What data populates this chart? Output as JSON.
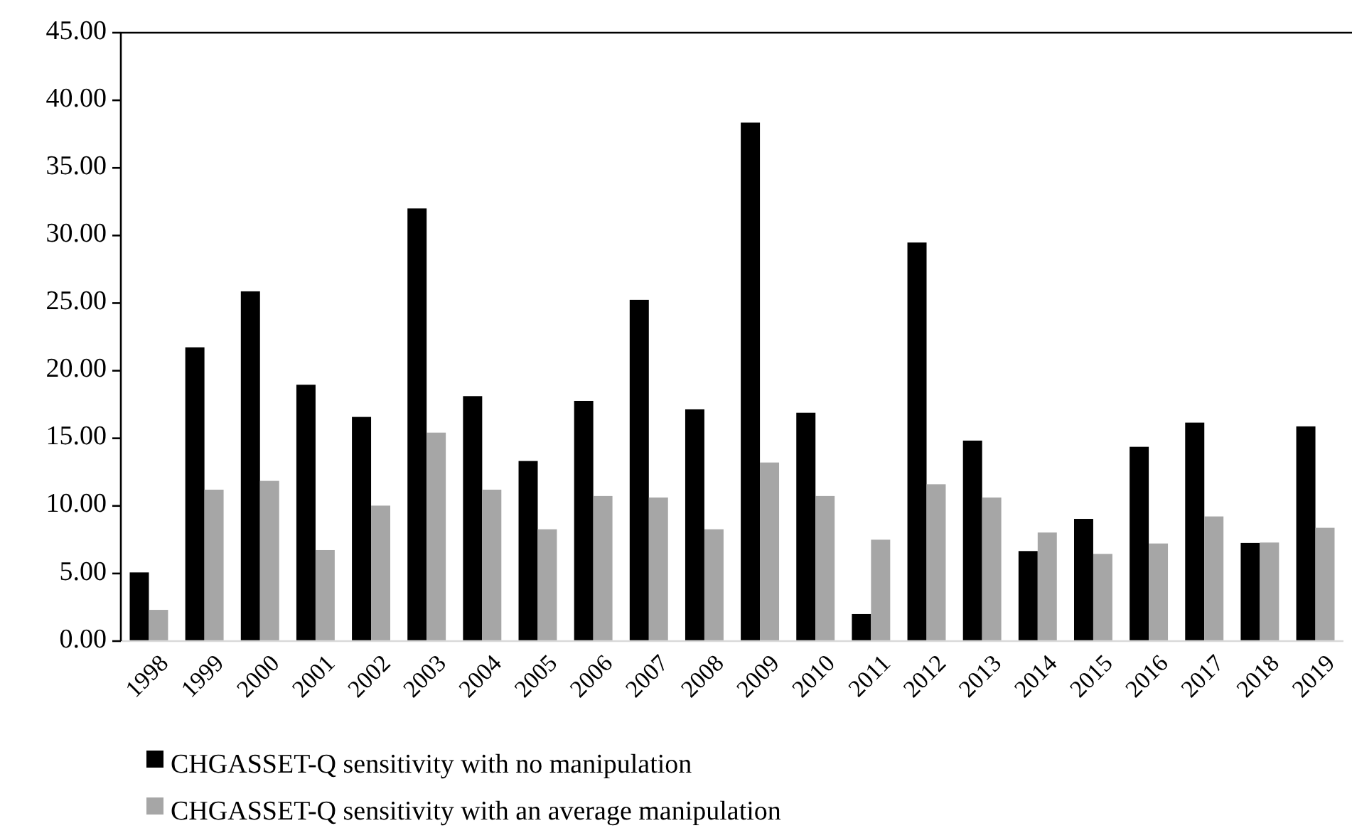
{
  "chart_data": {
    "type": "bar",
    "categories": [
      "1998",
      "1999",
      "2000",
      "2001",
      "2002",
      "2003",
      "2004",
      "2005",
      "2006",
      "2007",
      "2008",
      "2009",
      "2010",
      "2011",
      "2012",
      "2013",
      "2014",
      "2015",
      "2016",
      "2017",
      "2018",
      "2019"
    ],
    "series": [
      {
        "name": "CHGASSET-Q sensitivity with no manipulation",
        "color": "#000000",
        "values": [
          5.08,
          21.73,
          25.87,
          18.96,
          16.58,
          32.0,
          18.12,
          13.32,
          17.77,
          25.24,
          17.14,
          38.35,
          16.89,
          2.0,
          29.48,
          14.83,
          6.66,
          9.04,
          14.37,
          16.16,
          7.26,
          15.88
        ]
      },
      {
        "name": "CHGASSET-Q sensitivity with an average manipulation",
        "color": "#a6a6a6",
        "values": [
          2.31,
          11.2,
          11.85,
          6.73,
          10.02,
          15.42,
          11.2,
          8.27,
          10.73,
          10.62,
          8.27,
          13.21,
          10.73,
          7.5,
          11.6,
          10.62,
          8.03,
          6.45,
          7.22,
          9.22,
          7.29,
          8.38
        ]
      }
    ],
    "ylim": [
      0,
      45
    ],
    "yticks": [
      {
        "value": 0,
        "label": "0.00"
      },
      {
        "value": 5,
        "label": "5.00"
      },
      {
        "value": 10,
        "label": "10.00"
      },
      {
        "value": 15,
        "label": "15.00"
      },
      {
        "value": 20,
        "label": "20.00"
      },
      {
        "value": 25,
        "label": "25.00"
      },
      {
        "value": 30,
        "label": "30.00"
      },
      {
        "value": 35,
        "label": "35.00"
      },
      {
        "value": 40,
        "label": "40.00"
      },
      {
        "value": 45,
        "label": "45.00"
      }
    ],
    "grid": false,
    "legend": "bottom"
  }
}
